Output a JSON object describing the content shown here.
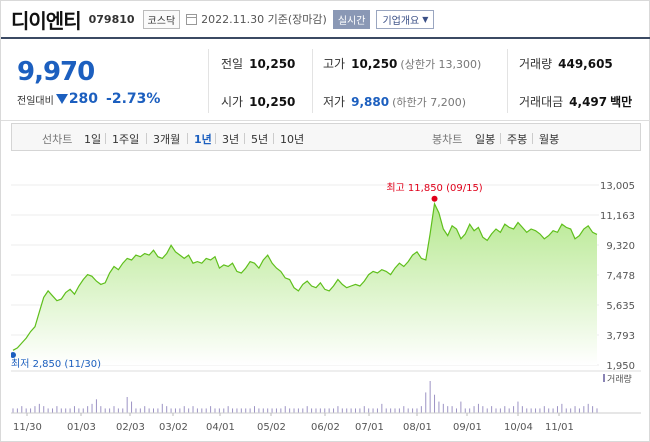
{
  "header": {
    "name": "디이엔티",
    "code": "079810",
    "market": "코스닥",
    "date": "2022.11.30 기준(장마감)",
    "realtime_label": "실시간",
    "company_info_label": "기업개요"
  },
  "price": {
    "current": "9,970",
    "change_label": "전일대비",
    "change_value": "280",
    "change_pct": "-2.73%"
  },
  "stats": {
    "prev_close": {
      "label": "전일",
      "value": "10,250"
    },
    "high": {
      "label": "고가",
      "value": "10,250",
      "sub": "(상한가 13,300)"
    },
    "volume": {
      "label": "거래량",
      "value": "449,605"
    },
    "open": {
      "label": "시가",
      "value": "10,250"
    },
    "low": {
      "label": "저가",
      "value": "9,880",
      "sub": "(하한가 7,200)"
    },
    "amount": {
      "label": "거래대금",
      "value": "4,497",
      "unit": "백만"
    }
  },
  "tabs": {
    "line_chart_label": "선차트",
    "periods": [
      "1일",
      "1주일",
      "3개월",
      "1년",
      "3년",
      "5년",
      "10년"
    ],
    "active_period": "1년",
    "candle_chart_label": "봉차트",
    "candles": [
      "일봉",
      "주봉",
      "월봉"
    ]
  },
  "colors": {
    "line": "#5fbf1c",
    "fill_top": "#b5e88e",
    "down": "#1c5fbf",
    "high_marker": "#e0001a"
  },
  "chart_data": {
    "type": "area",
    "y_ticks": [
      "13,005",
      "11,163",
      "9,320",
      "7,478",
      "5,635",
      "3,793",
      "1,950"
    ],
    "ylim": [
      1950,
      13005
    ],
    "x_ticks": [
      "11/30",
      "01/03",
      "02/03",
      "03/02",
      "04/01",
      "05/02",
      "06/02",
      "07/01",
      "08/01",
      "09/01",
      "10/04",
      "11/01"
    ],
    "high_annotation": "최고 11,850 (09/15)",
    "low_annotation": "최저 2,850 (11/30)",
    "volume_legend": "거래량",
    "series": [
      {
        "values": [
          2850,
          3000,
          3300,
          3600,
          4000,
          4300,
          5200,
          6100,
          6500,
          6200,
          5900,
          6000,
          6400,
          6600,
          6300,
          6800,
          7200,
          7500,
          7400,
          7100,
          6900,
          7000,
          7600,
          8000,
          7800,
          8200,
          8500,
          8400,
          8700,
          8600,
          8800,
          8700,
          9000,
          8600,
          8500,
          8800,
          9300,
          8900,
          8700,
          8500,
          8700,
          8200,
          8300,
          8200,
          8500,
          8400,
          8600,
          7900,
          8100,
          8000,
          8200,
          7700,
          7600,
          7900,
          8300,
          8200,
          7900,
          8400,
          8700,
          8200,
          7900,
          7700,
          7300,
          7200,
          6700,
          6500,
          6900,
          7100,
          6800,
          6700,
          7000,
          6600,
          6500,
          6800,
          7200,
          6900,
          6700,
          6800,
          6900,
          6800,
          7100,
          7500,
          7700,
          7600,
          7800,
          7700,
          7500,
          7900,
          8200,
          8000,
          8300,
          8700,
          8900,
          8500,
          8400,
          10000,
          11850,
          11300,
          10300,
          9900,
          10500,
          10300,
          9700,
          10000,
          10600,
          10200,
          10400,
          9800,
          9600,
          10000,
          10300,
          10100,
          10600,
          10400,
          10300,
          10700,
          10400,
          10100,
          10300,
          10200,
          10000,
          9700,
          9900,
          10200,
          10100,
          10600,
          10400,
          10300,
          9700,
          9900,
          10300,
          10500,
          10100,
          9970
        ],
        "volume": [
          2,
          2,
          3,
          2,
          2,
          3,
          4,
          3,
          2,
          2,
          3,
          2,
          2,
          2,
          3,
          2,
          2,
          3,
          4,
          6,
          3,
          2,
          2,
          3,
          2,
          2,
          7,
          5,
          2,
          2,
          3,
          2,
          2,
          2,
          4,
          3,
          2,
          2,
          2,
          3,
          2,
          3,
          2,
          2,
          2,
          3,
          2,
          2,
          2,
          3,
          2,
          2,
          2,
          2,
          2,
          3,
          2,
          2,
          2,
          2,
          2,
          2,
          3,
          2,
          2,
          2,
          2,
          3,
          2,
          2,
          2,
          2,
          2,
          2,
          3,
          2,
          2,
          2,
          2,
          2,
          3,
          2,
          2,
          2,
          4,
          2,
          2,
          2,
          2,
          3,
          2,
          2,
          2,
          3,
          9,
          14,
          8,
          5,
          4,
          3,
          3,
          2,
          5,
          2,
          2,
          3,
          4,
          3,
          2,
          3,
          2,
          2,
          3,
          2,
          3,
          5,
          3,
          2,
          2,
          2,
          2,
          3,
          2,
          2,
          3,
          4,
          2,
          2,
          3,
          2,
          3,
          4,
          3,
          2
        ]
      }
    ]
  }
}
